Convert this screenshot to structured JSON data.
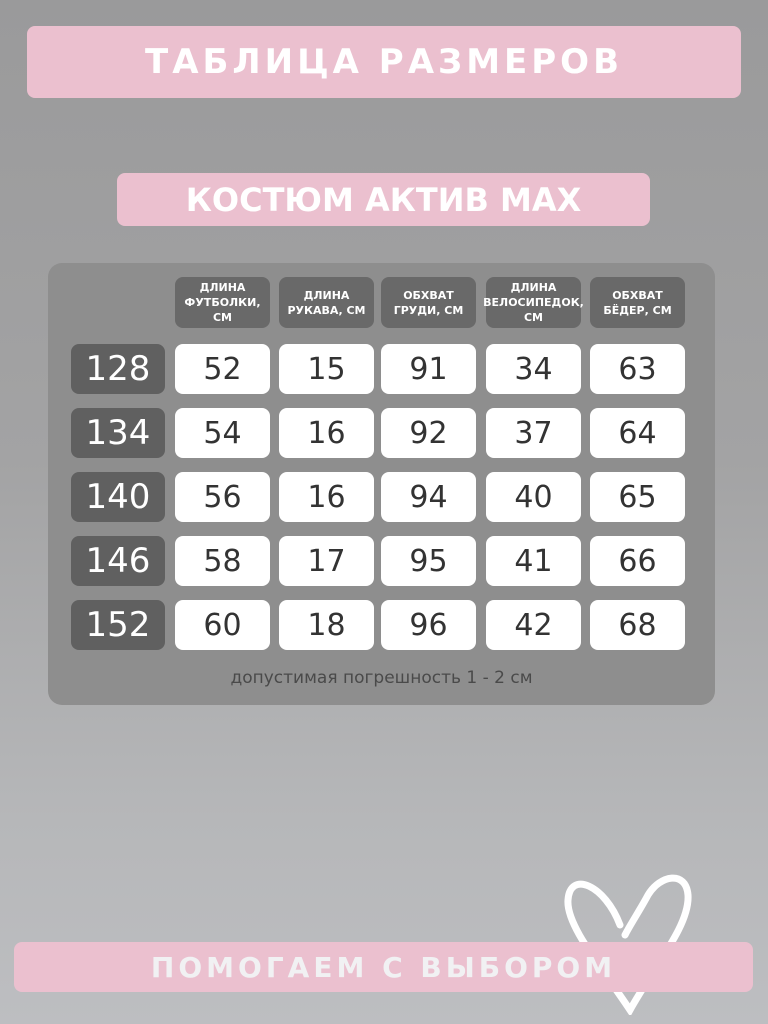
{
  "title": "ТАБЛИЦА РАЗМЕРОВ",
  "subtitle": "КОСТЮМ АКТИВ MAX",
  "table": {
    "headers": [
      "ДЛИНА\nФУТБОЛКИ,\nСМ",
      "ДЛИНА\nРУКАВА, СМ",
      "ОБХВАТ\nГРУДИ, СМ",
      "ДЛИНА\nВЕЛОСИПЕДОК,\nСМ",
      "ОБХВАТ\nБЁДЕР, СМ"
    ],
    "rows": [
      {
        "size": "128",
        "values": [
          "52",
          "15",
          "91",
          "34",
          "63"
        ]
      },
      {
        "size": "134",
        "values": [
          "54",
          "16",
          "92",
          "37",
          "64"
        ]
      },
      {
        "size": "140",
        "values": [
          "56",
          "16",
          "94",
          "40",
          "65"
        ]
      },
      {
        "size": "146",
        "values": [
          "58",
          "17",
          "95",
          "41",
          "66"
        ]
      },
      {
        "size": "152",
        "values": [
          "60",
          "18",
          "96",
          "42",
          "68"
        ]
      }
    ]
  },
  "note": "допустимая погрешность 1 - 2 см",
  "footer": "ПОМОГАЕМ С ВЫБОРОМ",
  "colors": {
    "pink": "#ebc0cf",
    "header": "#696969",
    "size": "#606060"
  },
  "decor": "heart-icon"
}
